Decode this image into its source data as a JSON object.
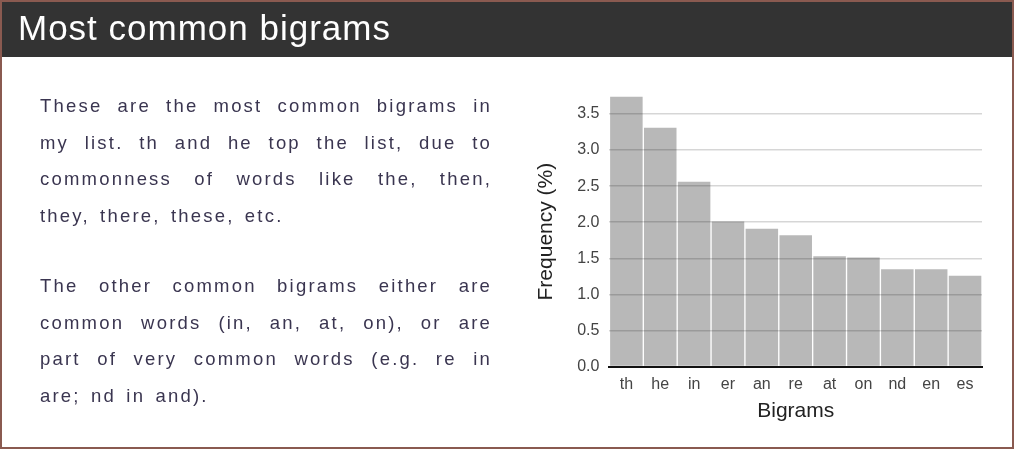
{
  "chart_data": {
    "type": "bar",
    "title": "Most common bigrams",
    "annotations": [
      "These are the most common bigrams in my list. th and he top the list, due to commonness of words like the, then, they, there, these, etc.",
      "The other common bigrams either are common words (in, an, at, on), or are part of very common words (e.g. re in are; nd in and)."
    ],
    "xlabel": "Bigrams",
    "ylabel": "Frequency (%)",
    "categories": [
      "th",
      "he",
      "in",
      "er",
      "an",
      "re",
      "at",
      "on",
      "nd",
      "en",
      "es"
    ],
    "values": [
      3.74,
      3.31,
      2.56,
      2.01,
      1.91,
      1.82,
      1.53,
      1.51,
      1.35,
      1.35,
      1.26
    ],
    "color": "#b8b8b8",
    "ylim": [
      0,
      3.74
    ],
    "yticks": [
      {
        "value": 0,
        "label": "0.0"
      },
      0.5,
      {
        "value": 1,
        "label": "1.0"
      },
      1.5,
      {
        "value": 2,
        "label": "2.0"
      },
      2.5,
      {
        "value": 3,
        "label": "3.0"
      },
      3.5
    ],
    "grid": "y"
  }
}
